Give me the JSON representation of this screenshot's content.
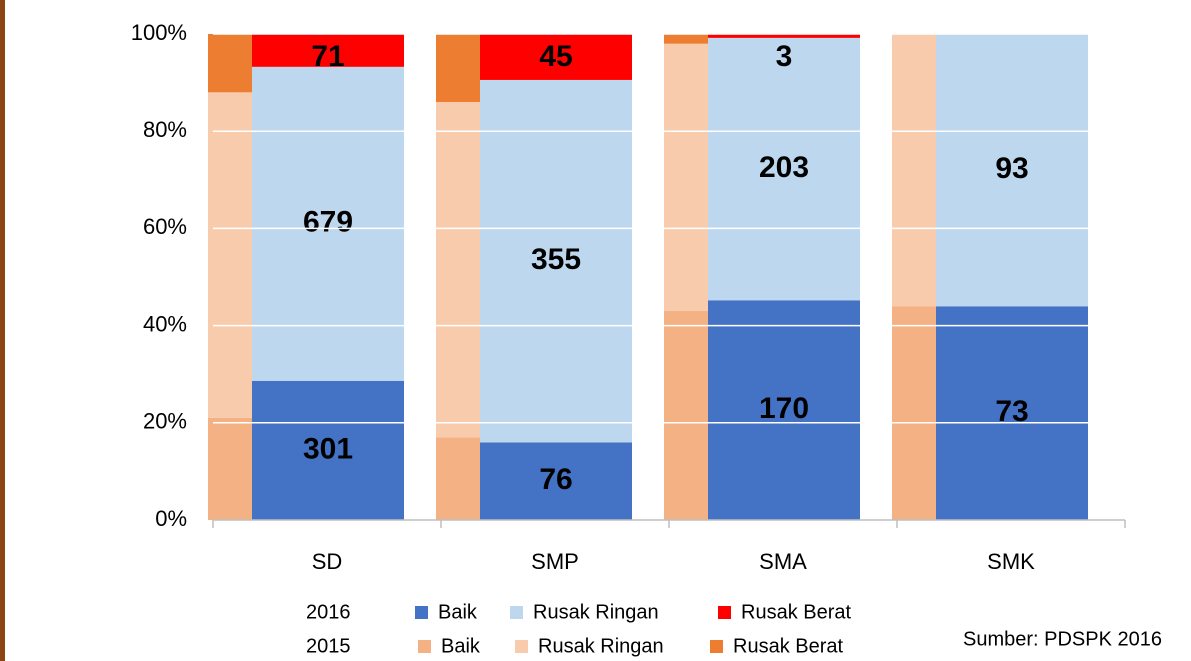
{
  "chart_data": {
    "type": "stacked_bar_100",
    "categories": [
      "SD",
      "SMP",
      "SMA",
      "SMK"
    ],
    "groups": [
      {
        "name": "2016",
        "series": [
          {
            "name": "Baik",
            "color": "#4472c4",
            "label_color": "#ffffff",
            "values": [
              301,
              76,
              170,
              73
            ]
          },
          {
            "name": "Rusak Ringan",
            "color": "#bdd7ee",
            "label_color": "#000000",
            "values": [
              679,
              355,
              203,
              93
            ]
          },
          {
            "name": "Rusak Berat",
            "color": "#ff0000",
            "label_color": "#ffffff",
            "values": [
              71,
              45,
              3,
              0
            ]
          }
        ]
      },
      {
        "name": "2015",
        "series": [
          {
            "name": "Baik",
            "color": "#f4b183",
            "values": [
              21,
              17,
              43,
              44
            ]
          },
          {
            "name": "Rusak Ringan",
            "color": "#f8cbad",
            "values": [
              67,
              69,
              55,
              56
            ]
          },
          {
            "name": "Rusak Berat",
            "color": "#ed7d31",
            "values": [
              12,
              14,
              2,
              0
            ]
          }
        ]
      }
    ],
    "ylim": [
      0,
      100
    ],
    "yticks": [
      {
        "value": 0,
        "label": "0%"
      },
      {
        "value": 20,
        "label": "20%"
      },
      {
        "value": 40,
        "label": "40%"
      },
      {
        "value": 60,
        "label": "60%"
      },
      {
        "value": 80,
        "label": "80%"
      },
      {
        "value": 100,
        "label": "100%"
      }
    ],
    "grid": true,
    "note": "Sumber: PDSPK 2016"
  }
}
